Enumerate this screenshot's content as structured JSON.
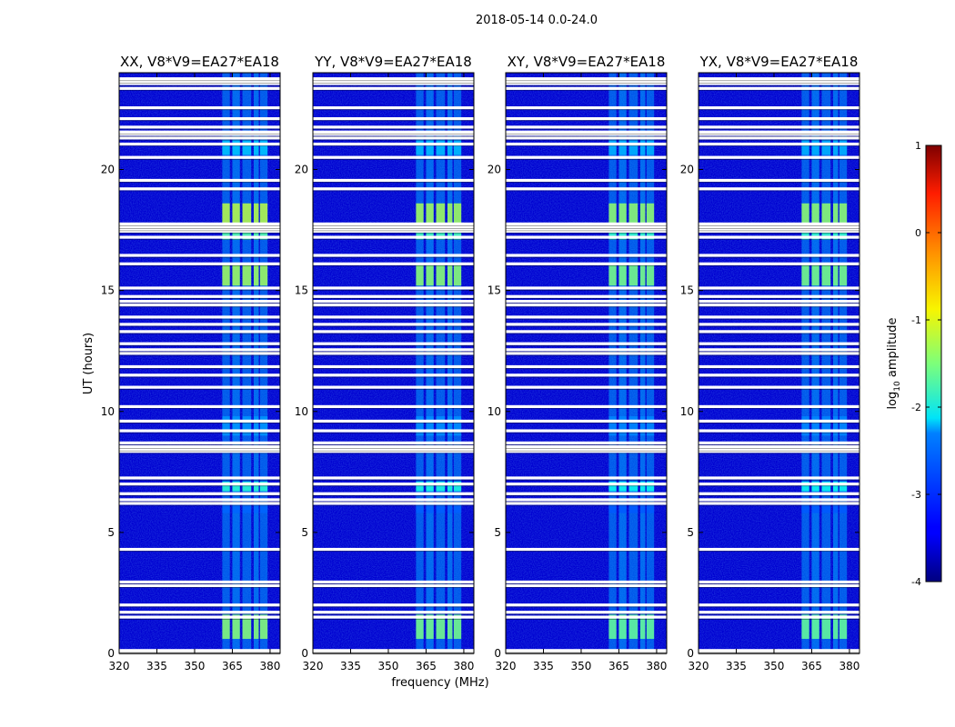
{
  "chart_data": {
    "type": "heatmap",
    "title": "2018-05-14 0.0-24.0",
    "xlabel": "frequency (MHz)",
    "ylabel": "UT (hours)",
    "xlim": [
      320,
      384
    ],
    "ylim": [
      0,
      24
    ],
    "xticks": [
      320,
      335,
      350,
      365,
      380
    ],
    "yticks": [
      0,
      5,
      10,
      15,
      20
    ],
    "rfi_band_mhz": [
      361,
      379
    ],
    "panels": [
      {
        "title": "XX, V8*V9=EA27*EA18",
        "background_log10": -3.6,
        "rfi_peak_log10": -1.2
      },
      {
        "title": "YY, V8*V9=EA27*EA18",
        "background_log10": -3.6,
        "rfi_peak_log10": -1.3
      },
      {
        "title": "XY, V8*V9=EA27*EA18",
        "background_log10": -3.6,
        "rfi_peak_log10": -1.4
      },
      {
        "title": "YX, V8*V9=EA27*EA18",
        "background_log10": -3.6,
        "rfi_peak_log10": -1.4
      }
    ],
    "flagged_hours": [
      0.05,
      0.12,
      1.5,
      1.7,
      2.0,
      2.8,
      2.95,
      4.3,
      6.2,
      6.35,
      6.6,
      7.0,
      7.25,
      8.35,
      8.45,
      8.55,
      8.7,
      9.2,
      9.6,
      10.2,
      11.0,
      11.5,
      11.85,
      12.4,
      12.55,
      12.8,
      13.3,
      13.6,
      13.9,
      14.4,
      14.55,
      14.75,
      15.1,
      16.1,
      16.45,
      17.2,
      17.45,
      17.55,
      17.65,
      17.75,
      19.2,
      19.55,
      20.5,
      21.05,
      21.3,
      21.45,
      21.55,
      21.75,
      22.1,
      22.55,
      23.35,
      23.55,
      23.65,
      23.75
    ]
  },
  "colorbar": {
    "label": "log",
    "label_sub": "10",
    "label_suffix": " amplitude",
    "range": [
      -4,
      1
    ],
    "ticks": [
      1,
      0,
      -1,
      -2,
      -3,
      -4
    ],
    "colormap": "jet"
  }
}
